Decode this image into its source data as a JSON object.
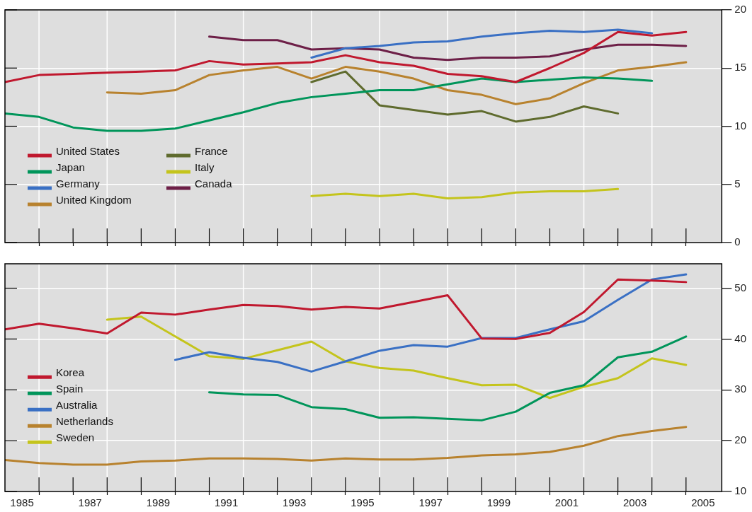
{
  "chart_data": [
    {
      "type": "line",
      "x": [
        1984.5,
        1985.5,
        1986.5,
        1987.5,
        1988.5,
        1989.5,
        1990.5,
        1991.5,
        1992.5,
        1993.5,
        1994.5,
        1995.5,
        1996.5,
        1997.5,
        1998.5,
        1999.5,
        2000.5,
        2001.5,
        2002.5,
        2003.5,
        2004.5
      ],
      "xlim": [
        1984.5,
        2005.55
      ],
      "ylim": [
        0,
        20
      ],
      "yticks": [
        0,
        5,
        10,
        15,
        20
      ],
      "xticks": [
        {
          "value": 1985.5,
          "label": null
        },
        {
          "value": 1986.5,
          "label": null
        },
        {
          "value": 1987.5,
          "label": null
        },
        {
          "value": 1988.5,
          "label": null
        },
        {
          "value": 1989.5,
          "label": null
        },
        {
          "value": 1990.5,
          "label": null
        },
        {
          "value": 1991.5,
          "label": null
        },
        {
          "value": 1992.5,
          "label": null
        },
        {
          "value": 1993.5,
          "label": null
        },
        {
          "value": 1994.5,
          "label": null
        },
        {
          "value": 1995.5,
          "label": null
        },
        {
          "value": 1996.5,
          "label": null
        },
        {
          "value": 1997.5,
          "label": null
        },
        {
          "value": 1998.5,
          "label": null
        },
        {
          "value": 1999.5,
          "label": null
        },
        {
          "value": 2000.5,
          "label": null
        },
        {
          "value": 2001.5,
          "label": null
        },
        {
          "value": 2002.5,
          "label": null
        },
        {
          "value": 2003.5,
          "label": null
        },
        {
          "value": 2004.5,
          "label": null
        }
      ],
      "tick_labels": "y",
      "grid": true,
      "legend": "bottom left",
      "series": [
        {
          "name": "United States",
          "color": "#c0182e",
          "values": [
            13.8,
            14.4,
            14.5,
            14.6,
            14.7,
            14.8,
            15.6,
            15.3,
            15.4,
            15.5,
            16.1,
            15.5,
            15.2,
            14.5,
            14.3,
            13.8,
            15.0,
            16.3,
            18.1,
            17.8,
            18.1
          ]
        },
        {
          "name": "Japan",
          "color": "#00955a",
          "values": [
            11.1,
            10.8,
            9.9,
            9.6,
            9.6,
            9.8,
            10.5,
            11.2,
            12.0,
            12.5,
            12.8,
            13.1,
            13.1,
            13.6,
            14.1,
            13.8,
            14.0,
            14.2,
            14.1,
            13.9,
            null
          ]
        },
        {
          "name": "Germany",
          "color": "#3a70c4",
          "values": [
            null,
            null,
            null,
            null,
            null,
            null,
            null,
            null,
            null,
            15.9,
            16.7,
            16.9,
            17.2,
            17.3,
            17.7,
            18.0,
            18.2,
            18.1,
            18.3,
            18.0,
            null
          ]
        },
        {
          "name": "United Kingdom",
          "color": "#b8822e",
          "values": [
            null,
            null,
            null,
            12.9,
            12.8,
            13.1,
            14.4,
            14.8,
            15.1,
            14.1,
            15.1,
            14.7,
            14.1,
            13.1,
            12.7,
            11.9,
            12.4,
            13.7,
            14.8,
            15.1,
            15.5
          ]
        },
        {
          "name": "France",
          "color": "#5f6b2e",
          "values": [
            null,
            null,
            null,
            null,
            null,
            null,
            null,
            null,
            null,
            13.8,
            14.7,
            11.8,
            11.4,
            11.0,
            11.3,
            10.4,
            10.8,
            11.7,
            11.1,
            null,
            null
          ]
        },
        {
          "name": "Italy",
          "color": "#c4c41c",
          "values": [
            null,
            null,
            null,
            null,
            null,
            null,
            null,
            null,
            null,
            4.0,
            4.2,
            4.0,
            4.2,
            3.8,
            3.9,
            4.3,
            4.4,
            4.4,
            4.6,
            null,
            null
          ]
        },
        {
          "name": "Canada",
          "color": "#6d1f47",
          "values": [
            null,
            null,
            null,
            null,
            null,
            null,
            17.7,
            17.4,
            17.4,
            16.6,
            16.7,
            16.6,
            15.9,
            15.7,
            15.9,
            15.9,
            16.0,
            16.6,
            17.0,
            17.0,
            16.9
          ]
        }
      ]
    },
    {
      "type": "line",
      "x": [
        1984.5,
        1985.5,
        1986.5,
        1987.5,
        1988.5,
        1989.5,
        1990.5,
        1991.5,
        1992.5,
        1993.5,
        1994.5,
        1995.5,
        1996.5,
        1997.5,
        1998.5,
        1999.5,
        2000.5,
        2001.5,
        2002.5,
        2003.5,
        2004.5
      ],
      "xlim": [
        1984.5,
        2005.55
      ],
      "ylim": [
        10,
        54.8
      ],
      "yticks": [
        10,
        20,
        30,
        40,
        50
      ],
      "xticks": [
        {
          "value": 1985,
          "label": "1985"
        },
        {
          "value": 1985.5,
          "label": null
        },
        {
          "value": 1986.5,
          "label": null
        },
        {
          "value": 1987,
          "label": "1987"
        },
        {
          "value": 1987.5,
          "label": null
        },
        {
          "value": 1988.5,
          "label": null
        },
        {
          "value": 1989,
          "label": "1989"
        },
        {
          "value": 1989.5,
          "label": null
        },
        {
          "value": 1990.5,
          "label": null
        },
        {
          "value": 1991,
          "label": "1991"
        },
        {
          "value": 1991.5,
          "label": null
        },
        {
          "value": 1992.5,
          "label": null
        },
        {
          "value": 1993,
          "label": "1993"
        },
        {
          "value": 1993.5,
          "label": null
        },
        {
          "value": 1994.5,
          "label": null
        },
        {
          "value": 1995,
          "label": "1995"
        },
        {
          "value": 1995.5,
          "label": null
        },
        {
          "value": 1996.5,
          "label": null
        },
        {
          "value": 1997,
          "label": "1997"
        },
        {
          "value": 1997.5,
          "label": null
        },
        {
          "value": 1998.5,
          "label": null
        },
        {
          "value": 1999,
          "label": "1999"
        },
        {
          "value": 1999.5,
          "label": null
        },
        {
          "value": 2000.5,
          "label": null
        },
        {
          "value": 2001,
          "label": "2001"
        },
        {
          "value": 2001.5,
          "label": null
        },
        {
          "value": 2002.5,
          "label": null
        },
        {
          "value": 2003,
          "label": "2003"
        },
        {
          "value": 2003.5,
          "label": null
        },
        {
          "value": 2004.5,
          "label": null
        },
        {
          "value": 2005,
          "label": "2005"
        }
      ],
      "grid": true,
      "legend": "left",
      "series": [
        {
          "name": "Korea",
          "color": "#c0182e",
          "values": [
            41.9,
            43.0,
            42.1,
            41.1,
            45.2,
            44.8,
            45.8,
            46.7,
            46.5,
            45.8,
            46.3,
            46.0,
            47.3,
            48.6,
            40.1,
            40.0,
            41.2,
            45.3,
            51.7,
            51.5,
            51.2
          ]
        },
        {
          "name": "Spain",
          "color": "#00955a",
          "values": [
            null,
            null,
            null,
            null,
            null,
            null,
            29.5,
            29.1,
            29.0,
            26.6,
            26.2,
            24.5,
            24.6,
            24.3,
            24.0,
            25.7,
            29.4,
            30.9,
            36.4,
            37.5,
            40.5
          ]
        },
        {
          "name": "Australia",
          "color": "#3a70c4",
          "values": [
            null,
            null,
            null,
            null,
            null,
            35.9,
            37.4,
            36.3,
            35.5,
            33.6,
            35.6,
            37.7,
            38.8,
            38.5,
            40.2,
            40.2,
            41.9,
            43.5,
            47.7,
            51.7,
            52.7
          ]
        },
        {
          "name": "Netherlands",
          "color": "#b8822e",
          "values": [
            16.2,
            15.6,
            15.3,
            15.3,
            15.9,
            16.1,
            16.5,
            16.5,
            16.4,
            16.1,
            16.5,
            16.3,
            16.3,
            16.6,
            17.1,
            17.3,
            17.8,
            19.0,
            20.9,
            21.9,
            22.7
          ]
        },
        {
          "name": "Sweden",
          "color": "#c4c41c",
          "values": [
            null,
            null,
            null,
            43.8,
            44.4,
            40.5,
            36.6,
            36.1,
            37.8,
            39.5,
            35.6,
            34.3,
            33.8,
            32.3,
            30.9,
            31.0,
            28.4,
            30.6,
            32.3,
            36.2,
            34.9
          ]
        }
      ]
    }
  ]
}
